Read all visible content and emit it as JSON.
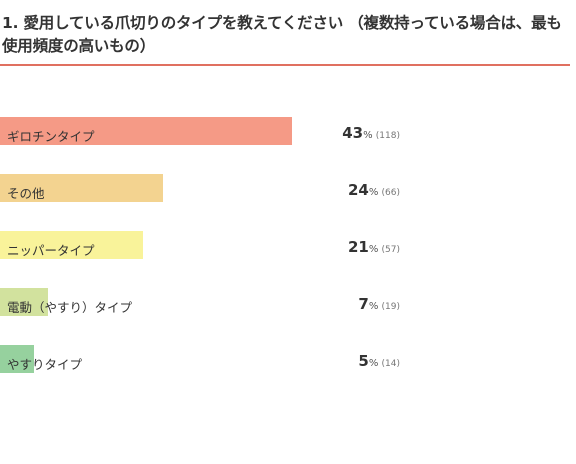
{
  "title": "1. 愛用している爪切りのタイプを教えてください （複数持っている場合は、最も使用頻度の高いもの）",
  "accent_color": "#e07060",
  "chart_data": {
    "type": "bar",
    "orientation": "horizontal",
    "categories": [
      "ギロチンタイプ",
      "その他",
      "ニッパータイプ",
      "電動（やすり）タイプ",
      "やすりタイプ"
    ],
    "values": [
      43,
      24,
      21,
      7,
      5
    ],
    "counts": [
      "(118)",
      "(66)",
      "(57)",
      "(19)",
      "(14)"
    ],
    "unit": "%",
    "colors": [
      "#f59a86",
      "#f3d390",
      "#f9f39a",
      "#d2e29e",
      "#96d19e"
    ],
    "xlim": [
      0,
      55
    ]
  }
}
